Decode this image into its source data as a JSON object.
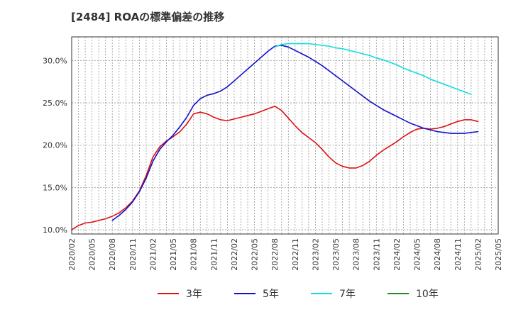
{
  "chart_data": {
    "type": "line",
    "title": "[2484]  ROAの標準偏差の推移",
    "xlabel": "",
    "ylabel": "",
    "x_ticks": [
      "2020/02",
      "2020/05",
      "2020/08",
      "2020/11",
      "2021/02",
      "2021/05",
      "2021/08",
      "2021/11",
      "2022/02",
      "2022/05",
      "2022/08",
      "2022/11",
      "2023/02",
      "2023/05",
      "2023/08",
      "2023/11",
      "2024/02",
      "2024/05",
      "2024/08",
      "2024/11",
      "2025/02",
      "2025/05"
    ],
    "y_ticks": [
      "10.0%",
      "15.0%",
      "20.0%",
      "25.0%",
      "30.0%"
    ],
    "y_tick_values": [
      10,
      15,
      20,
      25,
      30
    ],
    "ylim": [
      9.5,
      32.8
    ],
    "xlim": [
      "2020/02",
      "2025/05"
    ],
    "grid": true,
    "legend_position": "bottom",
    "series": [
      {
        "name": "3年",
        "color": "#dd1111",
        "points": [
          [
            "2020/02",
            10.0
          ],
          [
            "2020/03",
            10.5
          ],
          [
            "2020/04",
            10.8
          ],
          [
            "2020/05",
            10.9
          ],
          [
            "2020/06",
            11.1
          ],
          [
            "2020/07",
            11.3
          ],
          [
            "2020/08",
            11.6
          ],
          [
            "2020/09",
            12.0
          ],
          [
            "2020/10",
            12.6
          ],
          [
            "2020/11",
            13.4
          ],
          [
            "2020/12",
            14.6
          ],
          [
            "2021/01",
            16.4
          ],
          [
            "2021/02",
            18.6
          ],
          [
            "2021/03",
            19.8
          ],
          [
            "2021/04",
            20.5
          ],
          [
            "2021/05",
            21.0
          ],
          [
            "2021/06",
            21.6
          ],
          [
            "2021/07",
            22.5
          ],
          [
            "2021/08",
            23.7
          ],
          [
            "2021/09",
            23.9
          ],
          [
            "2021/10",
            23.7
          ],
          [
            "2021/11",
            23.3
          ],
          [
            "2021/12",
            23.0
          ],
          [
            "2022/01",
            22.9
          ],
          [
            "2022/02",
            23.1
          ],
          [
            "2022/03",
            23.3
          ],
          [
            "2022/04",
            23.5
          ],
          [
            "2022/05",
            23.7
          ],
          [
            "2022/06",
            24.0
          ],
          [
            "2022/07",
            24.3
          ],
          [
            "2022/08",
            24.6
          ],
          [
            "2022/09",
            24.1
          ],
          [
            "2022/10",
            23.2
          ],
          [
            "2022/11",
            22.3
          ],
          [
            "2022/12",
            21.5
          ],
          [
            "2023/01",
            20.9
          ],
          [
            "2023/02",
            20.3
          ],
          [
            "2023/03",
            19.5
          ],
          [
            "2023/04",
            18.6
          ],
          [
            "2023/05",
            17.9
          ],
          [
            "2023/06",
            17.5
          ],
          [
            "2023/07",
            17.3
          ],
          [
            "2023/08",
            17.3
          ],
          [
            "2023/09",
            17.6
          ],
          [
            "2023/10",
            18.1
          ],
          [
            "2023/11",
            18.8
          ],
          [
            "2023/12",
            19.4
          ],
          [
            "2024/01",
            19.9
          ],
          [
            "2024/02",
            20.4
          ],
          [
            "2024/03",
            21.0
          ],
          [
            "2024/04",
            21.5
          ],
          [
            "2024/05",
            21.9
          ],
          [
            "2024/06",
            22.0
          ],
          [
            "2024/07",
            21.9
          ],
          [
            "2024/08",
            22.0
          ],
          [
            "2024/09",
            22.2
          ],
          [
            "2024/10",
            22.5
          ],
          [
            "2024/11",
            22.8
          ],
          [
            "2024/12",
            23.0
          ],
          [
            "2025/01",
            23.0
          ],
          [
            "2025/02",
            22.8
          ]
        ]
      },
      {
        "name": "5年",
        "color": "#1111cc",
        "points": [
          [
            "2020/08",
            11.1
          ],
          [
            "2020/09",
            11.7
          ],
          [
            "2020/10",
            12.4
          ],
          [
            "2020/11",
            13.3
          ],
          [
            "2020/12",
            14.5
          ],
          [
            "2021/01",
            16.1
          ],
          [
            "2021/02",
            18.1
          ],
          [
            "2021/03",
            19.5
          ],
          [
            "2021/04",
            20.4
          ],
          [
            "2021/05",
            21.2
          ],
          [
            "2021/06",
            22.2
          ],
          [
            "2021/07",
            23.3
          ],
          [
            "2021/08",
            24.7
          ],
          [
            "2021/09",
            25.5
          ],
          [
            "2021/10",
            25.9
          ],
          [
            "2021/11",
            26.1
          ],
          [
            "2021/12",
            26.4
          ],
          [
            "2022/01",
            26.9
          ],
          [
            "2022/02",
            27.6
          ],
          [
            "2022/03",
            28.3
          ],
          [
            "2022/04",
            29.0
          ],
          [
            "2022/05",
            29.7
          ],
          [
            "2022/06",
            30.4
          ],
          [
            "2022/07",
            31.1
          ],
          [
            "2022/08",
            31.7
          ],
          [
            "2022/09",
            31.8
          ],
          [
            "2022/10",
            31.6
          ],
          [
            "2022/11",
            31.2
          ],
          [
            "2022/12",
            30.8
          ],
          [
            "2023/01",
            30.4
          ],
          [
            "2023/02",
            29.9
          ],
          [
            "2023/03",
            29.4
          ],
          [
            "2023/04",
            28.8
          ],
          [
            "2023/05",
            28.2
          ],
          [
            "2023/06",
            27.6
          ],
          [
            "2023/07",
            27.0
          ],
          [
            "2023/08",
            26.4
          ],
          [
            "2023/09",
            25.8
          ],
          [
            "2023/10",
            25.2
          ],
          [
            "2023/11",
            24.7
          ],
          [
            "2023/12",
            24.2
          ],
          [
            "2024/01",
            23.8
          ],
          [
            "2024/02",
            23.4
          ],
          [
            "2024/03",
            23.0
          ],
          [
            "2024/04",
            22.6
          ],
          [
            "2024/05",
            22.3
          ],
          [
            "2024/06",
            22.0
          ],
          [
            "2024/07",
            21.8
          ],
          [
            "2024/08",
            21.6
          ],
          [
            "2024/09",
            21.5
          ],
          [
            "2024/10",
            21.4
          ],
          [
            "2024/11",
            21.4
          ],
          [
            "2024/12",
            21.4
          ],
          [
            "2025/01",
            21.5
          ],
          [
            "2025/02",
            21.6
          ]
        ]
      },
      {
        "name": "7年",
        "color": "#11dddd",
        "points": [
          [
            "2022/08",
            31.6
          ],
          [
            "2022/09",
            31.9
          ],
          [
            "2022/10",
            32.0
          ],
          [
            "2022/11",
            32.0
          ],
          [
            "2022/12",
            32.0
          ],
          [
            "2023/01",
            32.0
          ],
          [
            "2023/02",
            31.9
          ],
          [
            "2023/03",
            31.8
          ],
          [
            "2023/04",
            31.7
          ],
          [
            "2023/05",
            31.5
          ],
          [
            "2023/06",
            31.4
          ],
          [
            "2023/07",
            31.2
          ],
          [
            "2023/08",
            31.0
          ],
          [
            "2023/09",
            30.8
          ],
          [
            "2023/10",
            30.6
          ],
          [
            "2023/11",
            30.3
          ],
          [
            "2023/12",
            30.1
          ],
          [
            "2024/01",
            29.8
          ],
          [
            "2024/02",
            29.5
          ],
          [
            "2024/03",
            29.1
          ],
          [
            "2024/04",
            28.8
          ],
          [
            "2024/05",
            28.5
          ],
          [
            "2024/06",
            28.2
          ],
          [
            "2024/07",
            27.8
          ],
          [
            "2024/08",
            27.5
          ],
          [
            "2024/09",
            27.2
          ],
          [
            "2024/10",
            26.9
          ],
          [
            "2024/11",
            26.6
          ],
          [
            "2024/12",
            26.3
          ],
          [
            "2025/01",
            26.0
          ]
        ]
      },
      {
        "name": "10年",
        "color": "#228b22",
        "points": []
      }
    ]
  }
}
